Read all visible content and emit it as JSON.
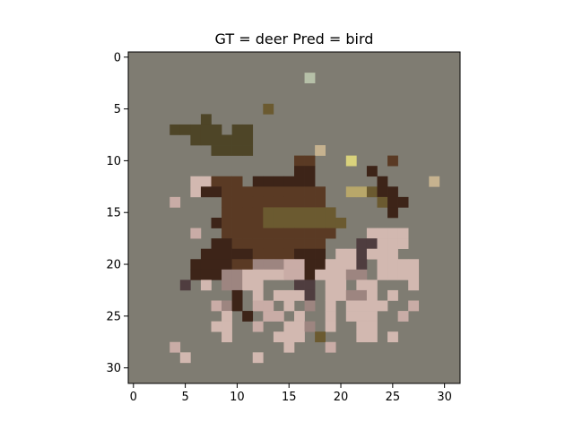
{
  "chart_data": {
    "type": "heatmap",
    "title": "GT = deer Pred = bird",
    "xlabel": "",
    "ylabel": "",
    "grid_size": 32,
    "xlim": [
      -0.5,
      31.5
    ],
    "ylim": [
      31.5,
      -0.5
    ],
    "x_ticks": [
      0,
      5,
      10,
      15,
      20,
      25,
      30
    ],
    "y_ticks": [
      0,
      5,
      10,
      15,
      20,
      25,
      30
    ],
    "grid": false,
    "colors": {
      "background": "#7f7c72",
      "dark_olive": "#4e4527",
      "olive": "#6b5a30",
      "dark_brown": "#3d2418",
      "brown": "#5a3a24",
      "pale_pink": "#d2b8b0",
      "light_pink": "#c9aca6",
      "mauve": "#9d8580",
      "dark_mauve": "#4f3d3f",
      "yellow": "#d9d27c",
      "khaki": "#b8a76a",
      "sage": "#b6c0a8",
      "tan": "#c6b28f"
    },
    "cells": [
      {
        "row": 2,
        "cols": [
          17
        ],
        "color": "sage"
      },
      {
        "row": 5,
        "cols": [
          13
        ],
        "color": "olive"
      },
      {
        "row": 6,
        "cols": [
          7
        ],
        "color": "dark_olive"
      },
      {
        "row": 7,
        "cols": [
          4,
          5,
          6,
          7,
          8
        ],
        "color": "dark_olive"
      },
      {
        "row": 7,
        "cols": [
          10,
          11
        ],
        "color": "dark_olive"
      },
      {
        "row": 8,
        "cols": [
          6,
          7,
          8,
          9,
          10,
          11
        ],
        "color": "dark_olive"
      },
      {
        "row": 9,
        "cols": [
          8,
          9,
          10,
          11
        ],
        "color": "dark_olive"
      },
      {
        "row": 9,
        "cols": [
          18
        ],
        "color": "tan"
      },
      {
        "row": 10,
        "cols": [
          16,
          17
        ],
        "color": "brown"
      },
      {
        "row": 10,
        "cols": [
          21
        ],
        "color": "yellow"
      },
      {
        "row": 10,
        "cols": [
          25
        ],
        "color": "brown"
      },
      {
        "row": 11,
        "cols": [
          16,
          17
        ],
        "color": "dark_brown"
      },
      {
        "row": 11,
        "cols": [
          23
        ],
        "color": "dark_brown"
      },
      {
        "row": 12,
        "cols": [
          6,
          7
        ],
        "color": "pale_pink"
      },
      {
        "row": 12,
        "cols": [
          8,
          9,
          10
        ],
        "color": "brown"
      },
      {
        "row": 12,
        "cols": [
          12,
          13,
          14,
          15,
          16,
          17
        ],
        "color": "dark_brown"
      },
      {
        "row": 12,
        "cols": [
          24
        ],
        "color": "dark_brown"
      },
      {
        "row": 12,
        "cols": [
          29
        ],
        "color": "tan"
      },
      {
        "row": 13,
        "cols": [
          6
        ],
        "color": "pale_pink"
      },
      {
        "row": 13,
        "cols": [
          7,
          8
        ],
        "color": "dark_brown"
      },
      {
        "row": 13,
        "cols": [
          9,
          10,
          11,
          12,
          13,
          14,
          15,
          16,
          17,
          18
        ],
        "color": "brown"
      },
      {
        "row": 13,
        "cols": [
          21,
          22
        ],
        "color": "khaki"
      },
      {
        "row": 13,
        "cols": [
          23
        ],
        "color": "olive"
      },
      {
        "row": 13,
        "cols": [
          24,
          25
        ],
        "color": "dark_brown"
      },
      {
        "row": 14,
        "cols": [
          4
        ],
        "color": "light_pink"
      },
      {
        "row": 14,
        "cols": [
          9,
          10,
          11,
          12,
          13,
          14,
          15,
          16,
          17,
          18
        ],
        "color": "brown"
      },
      {
        "row": 14,
        "cols": [
          24
        ],
        "color": "olive"
      },
      {
        "row": 14,
        "cols": [
          25,
          26
        ],
        "color": "dark_brown"
      },
      {
        "row": 15,
        "cols": [
          9,
          10,
          11,
          12
        ],
        "color": "brown"
      },
      {
        "row": 15,
        "cols": [
          13,
          14,
          15,
          16,
          17,
          18,
          19
        ],
        "color": "olive"
      },
      {
        "row": 15,
        "cols": [
          25
        ],
        "color": "dark_brown"
      },
      {
        "row": 16,
        "cols": [
          8
        ],
        "color": "dark_brown"
      },
      {
        "row": 16,
        "cols": [
          9,
          10,
          11,
          12
        ],
        "color": "brown"
      },
      {
        "row": 16,
        "cols": [
          13,
          14,
          15,
          16,
          17,
          18,
          19,
          20
        ],
        "color": "olive"
      },
      {
        "row": 17,
        "cols": [
          6
        ],
        "color": "light_pink"
      },
      {
        "row": 17,
        "cols": [
          9,
          10,
          11,
          12,
          13,
          14,
          15,
          16,
          17,
          18,
          19
        ],
        "color": "brown"
      },
      {
        "row": 17,
        "cols": [
          23,
          24,
          25,
          26
        ],
        "color": "pale_pink"
      },
      {
        "row": 18,
        "cols": [
          8,
          9
        ],
        "color": "dark_brown"
      },
      {
        "row": 18,
        "cols": [
          10,
          11,
          12,
          13,
          14,
          15,
          16,
          17,
          18
        ],
        "color": "brown"
      },
      {
        "row": 18,
        "cols": [
          22,
          23
        ],
        "color": "dark_mauve"
      },
      {
        "row": 18,
        "cols": [
          24,
          25,
          26
        ],
        "color": "pale_pink"
      },
      {
        "row": 19,
        "cols": [
          7,
          8,
          9,
          10,
          11
        ],
        "color": "dark_brown"
      },
      {
        "row": 19,
        "cols": [
          12,
          13,
          14,
          15
        ],
        "color": "brown"
      },
      {
        "row": 19,
        "cols": [
          16,
          17,
          18
        ],
        "color": "dark_brown"
      },
      {
        "row": 19,
        "cols": [
          20,
          21
        ],
        "color": "pale_pink"
      },
      {
        "row": 19,
        "cols": [
          22
        ],
        "color": "dark_mauve"
      },
      {
        "row": 19,
        "cols": [
          23,
          24,
          25
        ],
        "color": "pale_pink"
      },
      {
        "row": 20,
        "cols": [
          6,
          7,
          8,
          9
        ],
        "color": "dark_brown"
      },
      {
        "row": 20,
        "cols": [
          10,
          11
        ],
        "color": "brown"
      },
      {
        "row": 20,
        "cols": [
          12,
          13,
          14
        ],
        "color": "mauve"
      },
      {
        "row": 20,
        "cols": [
          15,
          16
        ],
        "color": "light_pink"
      },
      {
        "row": 20,
        "cols": [
          17,
          18
        ],
        "color": "dark_brown"
      },
      {
        "row": 20,
        "cols": [
          19,
          20,
          21
        ],
        "color": "pale_pink"
      },
      {
        "row": 20,
        "cols": [
          22
        ],
        "color": "dark_mauve"
      },
      {
        "row": 20,
        "cols": [
          24,
          25,
          26,
          27
        ],
        "color": "pale_pink"
      },
      {
        "row": 21,
        "cols": [
          6,
          7,
          8
        ],
        "color": "dark_brown"
      },
      {
        "row": 21,
        "cols": [
          9,
          10
        ],
        "color": "mauve"
      },
      {
        "row": 21,
        "cols": [
          11,
          12,
          13,
          14
        ],
        "color": "pale_pink"
      },
      {
        "row": 21,
        "cols": [
          15,
          16
        ],
        "color": "light_pink"
      },
      {
        "row": 21,
        "cols": [
          17
        ],
        "color": "dark_brown"
      },
      {
        "row": 21,
        "cols": [
          18,
          19,
          20
        ],
        "color": "pale_pink"
      },
      {
        "row": 21,
        "cols": [
          21,
          22
        ],
        "color": "mauve"
      },
      {
        "row": 21,
        "cols": [
          24,
          25,
          26,
          27
        ],
        "color": "pale_pink"
      },
      {
        "row": 22,
        "cols": [
          5
        ],
        "color": "dark_mauve"
      },
      {
        "row": 22,
        "cols": [
          7
        ],
        "color": "pale_pink"
      },
      {
        "row": 22,
        "cols": [
          9,
          10
        ],
        "color": "mauve"
      },
      {
        "row": 22,
        "cols": [
          11,
          12
        ],
        "color": "pale_pink"
      },
      {
        "row": 22,
        "cols": [
          16,
          17
        ],
        "color": "dark_mauve"
      },
      {
        "row": 22,
        "cols": [
          19,
          20
        ],
        "color": "pale_pink"
      },
      {
        "row": 22,
        "cols": [
          22,
          23
        ],
        "color": "pale_pink"
      },
      {
        "row": 22,
        "cols": [
          27
        ],
        "color": "pale_pink"
      },
      {
        "row": 23,
        "cols": [
          10
        ],
        "color": "dark_brown"
      },
      {
        "row": 23,
        "cols": [
          12
        ],
        "color": "pale_pink"
      },
      {
        "row": 23,
        "cols": [
          14,
          15,
          16
        ],
        "color": "pale_pink"
      },
      {
        "row": 23,
        "cols": [
          17
        ],
        "color": "dark_mauve"
      },
      {
        "row": 23,
        "cols": [
          19,
          20
        ],
        "color": "pale_pink"
      },
      {
        "row": 23,
        "cols": [
          21,
          22
        ],
        "color": "mauve"
      },
      {
        "row": 23,
        "cols": [
          23
        ],
        "color": "pale_pink"
      },
      {
        "row": 23,
        "cols": [
          25
        ],
        "color": "pale_pink"
      },
      {
        "row": 24,
        "cols": [
          8
        ],
        "color": "light_pink"
      },
      {
        "row": 24,
        "cols": [
          9
        ],
        "color": "mauve"
      },
      {
        "row": 24,
        "cols": [
          10
        ],
        "color": "dark_brown"
      },
      {
        "row": 24,
        "cols": [
          12,
          13
        ],
        "color": "light_pink"
      },
      {
        "row": 24,
        "cols": [
          15
        ],
        "color": "pale_pink"
      },
      {
        "row": 24,
        "cols": [
          17
        ],
        "color": "mauve"
      },
      {
        "row": 24,
        "cols": [
          19
        ],
        "color": "pale_pink"
      },
      {
        "row": 24,
        "cols": [
          21,
          22,
          23,
          24
        ],
        "color": "pale_pink"
      },
      {
        "row": 24,
        "cols": [
          27
        ],
        "color": "light_pink"
      },
      {
        "row": 25,
        "cols": [
          9
        ],
        "color": "pale_pink"
      },
      {
        "row": 25,
        "cols": [
          11
        ],
        "color": "dark_brown"
      },
      {
        "row": 25,
        "cols": [
          13,
          14
        ],
        "color": "light_pink"
      },
      {
        "row": 25,
        "cols": [
          16
        ],
        "color": "pale_pink"
      },
      {
        "row": 25,
        "cols": [
          19
        ],
        "color": "pale_pink"
      },
      {
        "row": 25,
        "cols": [
          21,
          22
        ],
        "color": "pale_pink"
      },
      {
        "row": 25,
        "cols": [
          23
        ],
        "color": "pale_pink"
      },
      {
        "row": 25,
        "cols": [
          26
        ],
        "color": "light_pink"
      },
      {
        "row": 26,
        "cols": [
          8,
          9
        ],
        "color": "pale_pink"
      },
      {
        "row": 26,
        "cols": [
          12
        ],
        "color": "light_pink"
      },
      {
        "row": 26,
        "cols": [
          15,
          16
        ],
        "color": "pale_pink"
      },
      {
        "row": 26,
        "cols": [
          17
        ],
        "color": "mauve"
      },
      {
        "row": 26,
        "cols": [
          19
        ],
        "color": "pale_pink"
      },
      {
        "row": 26,
        "cols": [
          22,
          23
        ],
        "color": "pale_pink"
      },
      {
        "row": 27,
        "cols": [
          9
        ],
        "color": "pale_pink"
      },
      {
        "row": 27,
        "cols": [
          14,
          15,
          16
        ],
        "color": "pale_pink"
      },
      {
        "row": 27,
        "cols": [
          18
        ],
        "color": "olive"
      },
      {
        "row": 27,
        "cols": [
          22,
          23
        ],
        "color": "pale_pink"
      },
      {
        "row": 27,
        "cols": [
          25
        ],
        "color": "pale_pink"
      },
      {
        "row": 28,
        "cols": [
          4
        ],
        "color": "light_pink"
      },
      {
        "row": 28,
        "cols": [
          15
        ],
        "color": "pale_pink"
      },
      {
        "row": 28,
        "cols": [
          19
        ],
        "color": "light_pink"
      },
      {
        "row": 29,
        "cols": [
          5
        ],
        "color": "pale_pink"
      },
      {
        "row": 29,
        "cols": [
          12
        ],
        "color": "pale_pink"
      }
    ]
  }
}
